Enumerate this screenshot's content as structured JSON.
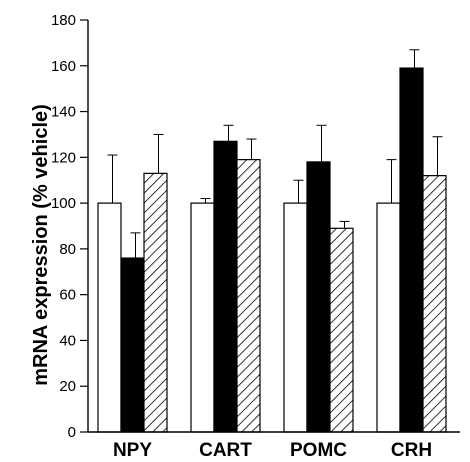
{
  "chart_data": {
    "type": "bar",
    "title": "",
    "xlabel": "",
    "ylabel": "mRNA expression (% vehicle)",
    "ylim": [
      0,
      180
    ],
    "yticks": [
      0,
      20,
      40,
      60,
      80,
      100,
      120,
      140,
      160,
      180
    ],
    "grid": false,
    "legend": "none",
    "categories": [
      "NPY",
      "CART",
      "POMC",
      "CRH"
    ],
    "series": [
      {
        "fill": "white",
        "values": [
          100,
          100,
          100,
          100
        ],
        "errors": [
          21,
          2,
          10,
          19
        ]
      },
      {
        "fill": "black",
        "values": [
          76,
          127,
          118,
          159
        ],
        "errors": [
          11,
          7,
          16,
          8
        ]
      },
      {
        "fill": "hatched",
        "values": [
          113,
          119,
          89,
          112
        ],
        "errors": [
          17,
          9,
          3,
          17
        ]
      }
    ]
  }
}
